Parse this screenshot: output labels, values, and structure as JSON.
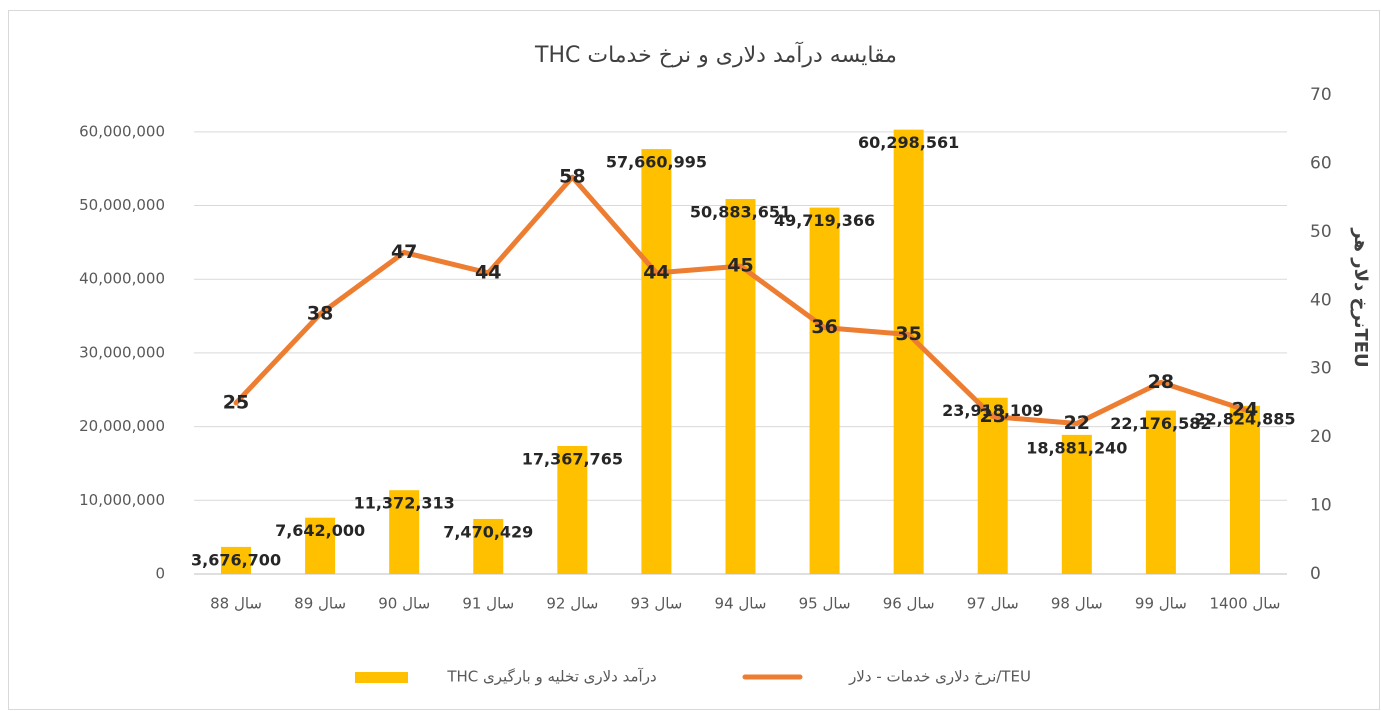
{
  "chart_data": {
    "type": "bar-line",
    "title": "مقایسه درآمد دلاری و نرخ خدمات THC",
    "y2_label": "نرخ دلار هرTEU",
    "categories": [
      "سال 88",
      "سال 89",
      "سال 90",
      "سال 91",
      "سال 92",
      "سال 93",
      "سال 94",
      "سال 95",
      "سال 96",
      "سال 97",
      "سال 98",
      "سال 99",
      "سال 1400"
    ],
    "series": [
      {
        "name": "درآمد دلاری تخلیه و بارگیری THC",
        "type": "bar",
        "color": "#ffc000",
        "values": [
          3676700,
          7642000,
          11372313,
          7470429,
          17367765,
          57660995,
          50883651,
          49719366,
          60298561,
          23918109,
          18881240,
          22176582,
          22824885
        ],
        "value_labels": [
          "3,676,700",
          "7,642,000",
          "11,372,313",
          "7,470,429",
          "17,367,765",
          "57,660,995",
          "50,883,651",
          "49,719,366",
          "60,298,561",
          "23,918,109",
          "18,881,240",
          "22,176,582",
          "22,824,885"
        ]
      },
      {
        "name": "نرخ دلاری خدمات - دلار/TEU",
        "type": "line",
        "color": "#ed7d31",
        "axis": "y2",
        "values": [
          25,
          38,
          47,
          44,
          58,
          44,
          45,
          36,
          35,
          23,
          22,
          28,
          24
        ]
      }
    ],
    "ylim": [
      0,
      65000000
    ],
    "yticks": [
      0,
      {
        "value": 10000000,
        "label": "10,000,000"
      },
      {
        "value": 20000000,
        "label": "20,000,000"
      },
      {
        "value": 30000000,
        "label": "30,000,000"
      },
      {
        "value": 40000000,
        "label": "40,000,000"
      },
      {
        "value": 50000000,
        "label": "50,000,000"
      },
      {
        "value": 60000000,
        "label": "60,000,000"
      }
    ],
    "y2lim": [
      0,
      70
    ],
    "y2ticks": [
      0,
      10,
      20,
      30,
      40,
      50,
      60,
      70
    ],
    "grid": true,
    "legend": "bottom"
  }
}
